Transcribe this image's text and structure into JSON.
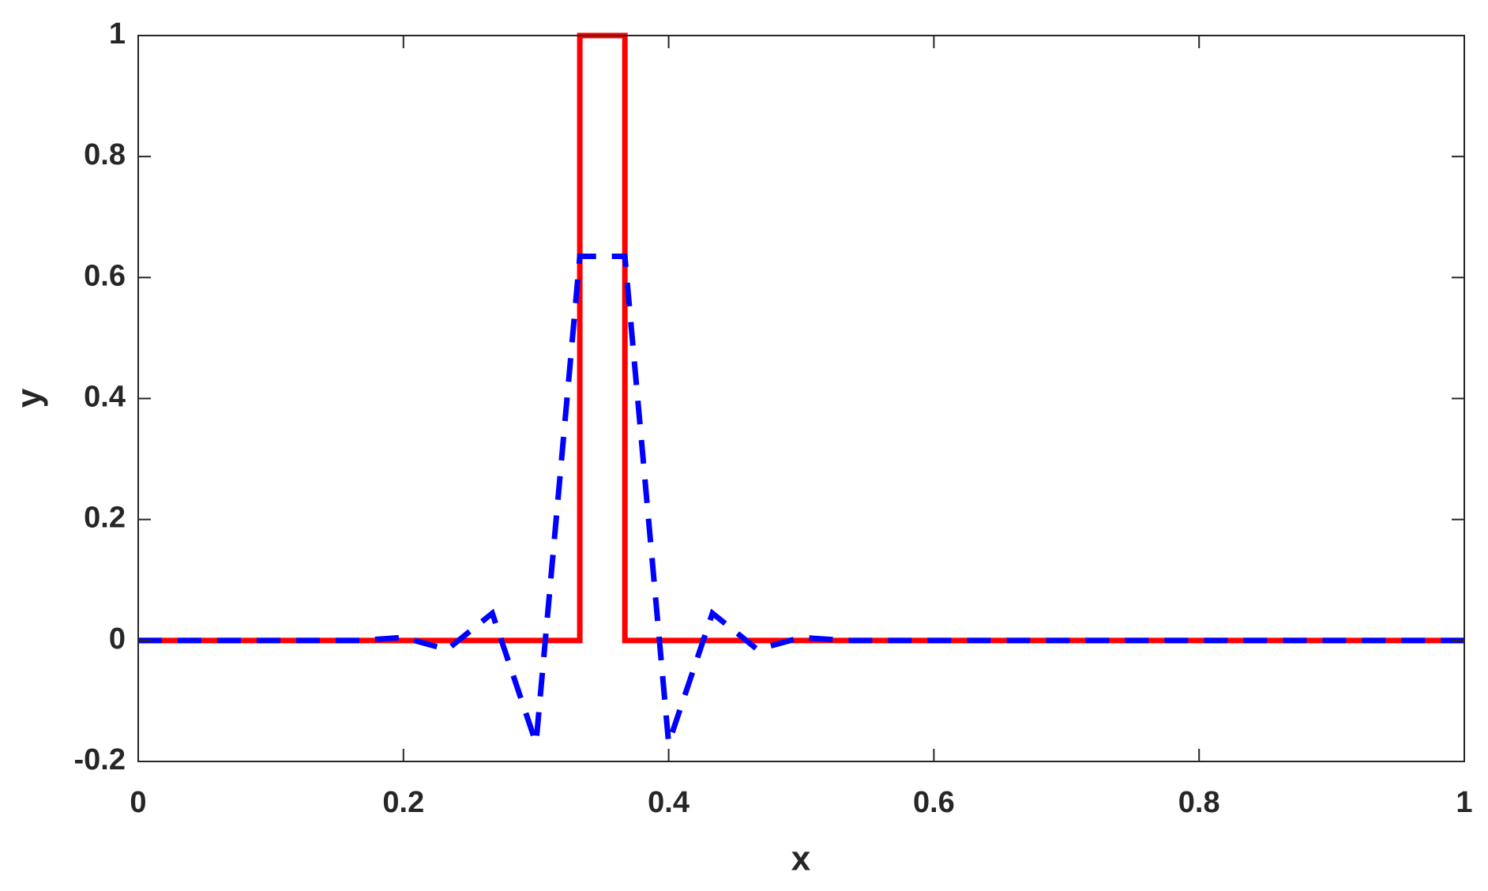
{
  "chart_data": {
    "type": "line",
    "xlabel": "x",
    "ylabel": "y",
    "xlim": [
      0,
      1
    ],
    "ylim": [
      -0.2,
      1
    ],
    "xticks": [
      0,
      0.2,
      0.4,
      0.6,
      0.8,
      1
    ],
    "yticks": [
      -0.2,
      0,
      0.2,
      0.4,
      0.6,
      0.8,
      1
    ],
    "grid": false,
    "series": [
      {
        "color": "#ff0000",
        "dash": "solid",
        "x": [
          0,
          0.333,
          0.333,
          0.367,
          0.367,
          1
        ],
        "values": [
          0,
          0,
          1,
          1,
          0,
          0
        ]
      },
      {
        "color": "#0000ff",
        "dash": "dashed",
        "x": [
          0,
          0.167,
          0.2,
          0.233,
          0.267,
          0.3,
          0.333,
          0.367,
          0.4,
          0.433,
          0.467,
          0.5,
          0.533,
          1
        ],
        "values": [
          0,
          0,
          0.005,
          -0.015,
          0.045,
          -0.17,
          0.635,
          0.635,
          -0.17,
          0.045,
          -0.015,
          0.005,
          0,
          0
        ]
      }
    ]
  }
}
